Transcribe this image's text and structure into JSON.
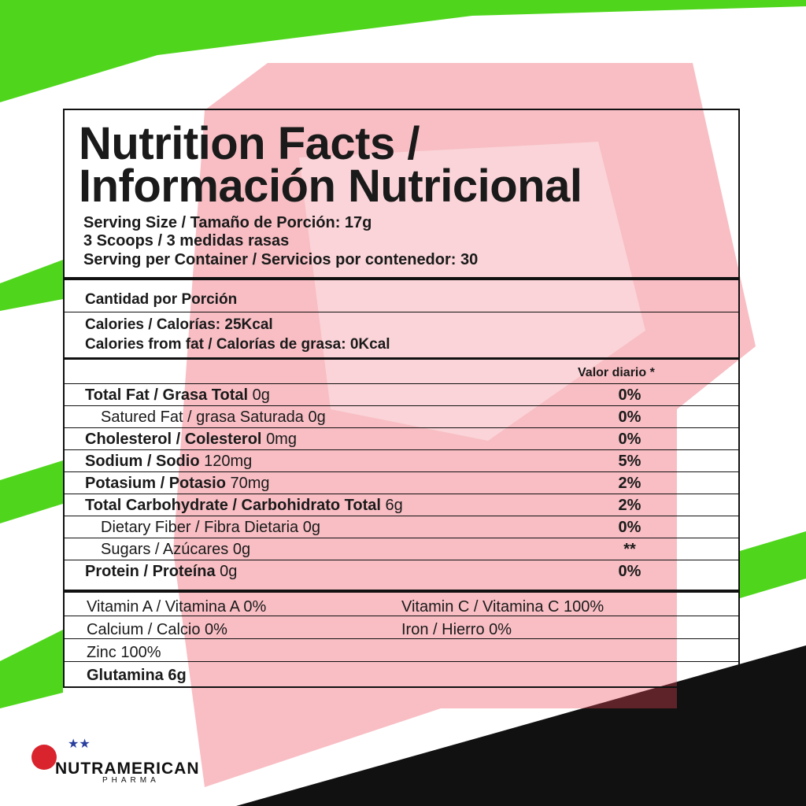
{
  "title": [
    "Nutrition Facts /",
    "Información Nutricional"
  ],
  "serving": [
    "Serving Size / Tamaño de Porción: 17g",
    "3 Scoops / 3 medidas rasas",
    "Serving per Container / Servicios por contenedor: 30"
  ],
  "amount_per_serving": "Cantidad por Porción",
  "calories": [
    "Calories / Calorías: 25Kcal",
    "Calories from fat / Calorías de grasa: 0Kcal"
  ],
  "daily_value_header": "Valor diario *",
  "nutrients": [
    {
      "label": "Total Fat / Grasa Total",
      "amount": "0g",
      "dv": "0%",
      "sub": [
        {
          "label": "Satured Fat / grasa Saturada",
          "amount": "0g",
          "dv": "0%"
        }
      ]
    },
    {
      "label": "Cholesterol / Colesterol",
      "amount": "0mg",
      "dv": "0%"
    },
    {
      "label": "Sodium / Sodio",
      "amount": "120mg",
      "dv": "5%"
    },
    {
      "label": "Potasium / Potasio",
      "amount": "70mg",
      "dv": "2%"
    },
    {
      "label": "Total Carbohydrate / Carbohidrato Total",
      "amount": "6g",
      "dv": "2%",
      "sub": [
        {
          "label": "Dietary Fiber / Fibra Dietaria",
          "amount": "0g",
          "dv": "0%"
        },
        {
          "label": "Sugars / Azúcares",
          "amount": "0g",
          "dv": "**"
        }
      ]
    },
    {
      "label": "Protein / Proteína",
      "amount": "0g",
      "dv": "0%"
    }
  ],
  "vitamins": [
    [
      "Vitamin A / Vitamina A 0%",
      "Vitamin C / Vitamina C 100%"
    ],
    [
      "Calcium / Calcio 0%",
      "Iron / Hierro 0%"
    ],
    [
      "Zinc 100%"
    ]
  ],
  "footer_item": "Glutamina 6g",
  "brand": {
    "name": "NUTRAMERICAN",
    "tagline": "PHARMA"
  }
}
